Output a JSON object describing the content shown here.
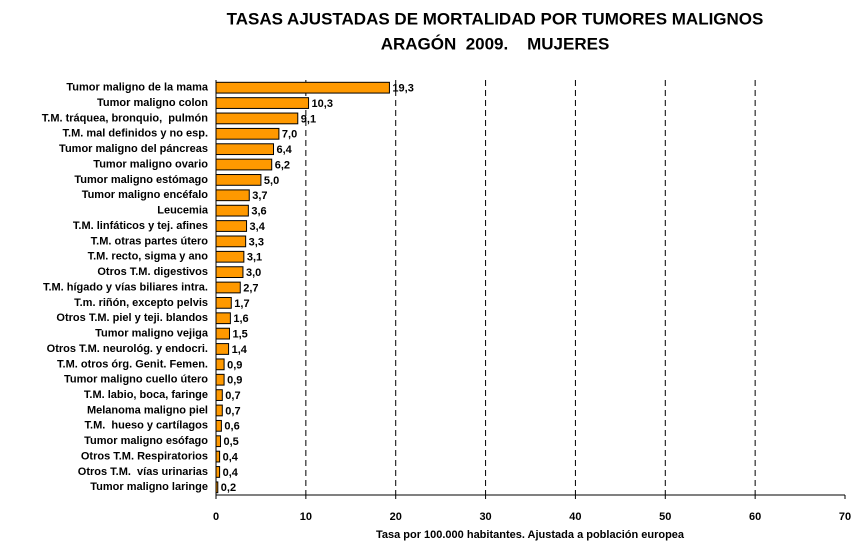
{
  "chart_data": {
    "type": "barh",
    "title": "TASAS AJUSTADAS DE MORTALIDAD POR TUMORES MALIGNOS",
    "subtitle": "ARAGÓN  2009.    MUJERES",
    "xlabel": "Tasa por 100.000 habitantes. Ajustada a población europea",
    "categories": [
      "Tumor maligno de la mama",
      "Tumor maligno colon",
      "T.M. tráquea, bronquio,  pulmón",
      "T.M. mal definidos y no esp.",
      "Tumor maligno del páncreas",
      "Tumor maligno ovario",
      "Tumor maligno estómago",
      "Tumor maligno encéfalo",
      "Leucemia",
      "T.M. linfáticos y tej. afines",
      "T.M. otras partes útero",
      "T.M. recto, sigma y ano",
      "Otros T.M. digestivos",
      "T.M. hígado y vías biliares intra.",
      "T.m. riñón, excepto pelvis",
      "Otros T.M. piel y teji. blandos",
      "Tumor maligno vejiga",
      "Otros T.M. neurológ. y endocri.",
      "T.M. otros órg. Genit. Femen.",
      "Tumor maligno cuello útero",
      "T.M. labio, boca, faringe",
      "Melanoma maligno piel",
      "T.M.  hueso y cartílagos",
      "Tumor maligno esófago",
      "Otros T.M. Respiratorios",
      "Otros T.M.  vías urinarias",
      "Tumor maligno laringe"
    ],
    "values": [
      19.3,
      10.3,
      9.1,
      7.0,
      6.4,
      6.2,
      5.0,
      3.7,
      3.6,
      3.4,
      3.3,
      3.1,
      3.0,
      2.7,
      1.7,
      1.6,
      1.5,
      1.4,
      0.9,
      0.9,
      0.7,
      0.7,
      0.6,
      0.5,
      0.4,
      0.4,
      0.2
    ],
    "value_labels": [
      "19,3",
      "10,3",
      "9,1",
      "7,0",
      "6,4",
      "6,2",
      "5,0",
      "3,7",
      "3,6",
      "3,4",
      "3,3",
      "3,1",
      "3,0",
      "2,7",
      "1,7",
      "1,6",
      "1,5",
      "1,4",
      "0,9",
      "0,9",
      "0,7",
      "0,7",
      "0,6",
      "0,5",
      "0,4",
      "0,4",
      "0,2"
    ],
    "color": "#ff9900",
    "xlim": [
      0,
      70
    ],
    "xticks": [
      0,
      10,
      20,
      30,
      40,
      50,
      60,
      70
    ],
    "grid": true
  }
}
